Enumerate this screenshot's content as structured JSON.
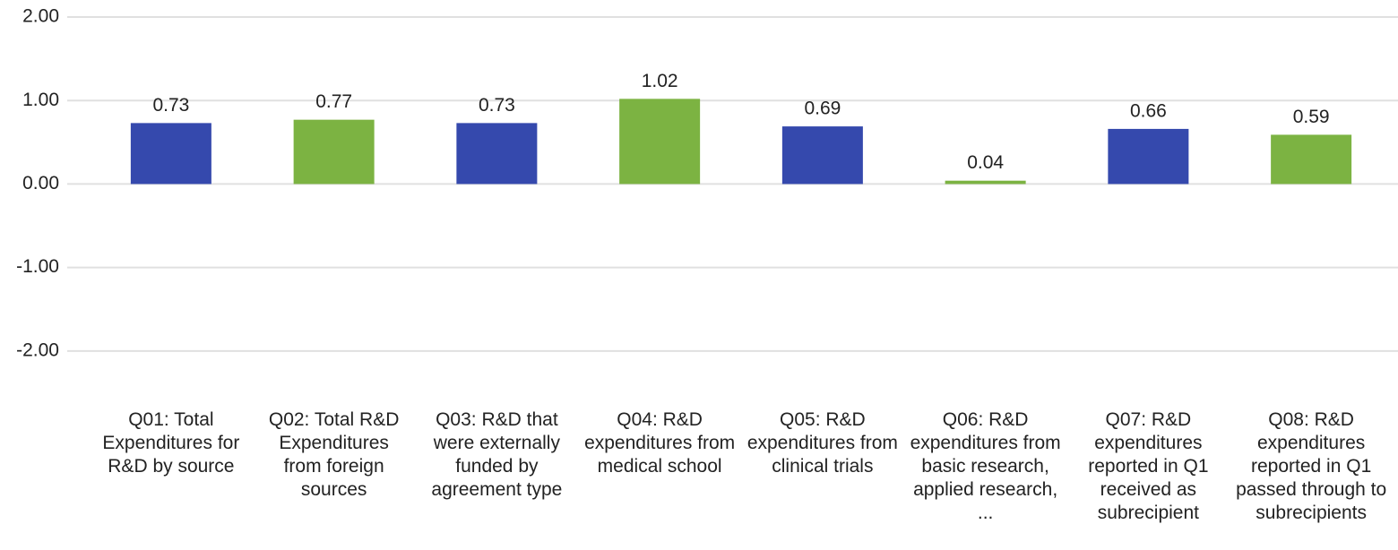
{
  "chart_data": {
    "type": "bar",
    "categories": [
      "Q01: Total Expenditures for R&D by source",
      "Q02: Total R&D Expenditures from foreign sources",
      "Q03: R&D that were externally funded by agreement type",
      "Q04: R&D expenditures from medical school",
      "Q05: R&D expenditures from clinical trials",
      "Q06: R&D expenditures from basic research, applied research, ...",
      "Q07: R&D expenditures reported in Q1 received as subrecipient",
      "Q08: R&D expenditures reported in Q1 passed through to subrecipients"
    ],
    "values": [
      0.73,
      0.77,
      0.73,
      1.02,
      0.69,
      0.04,
      0.66,
      0.59
    ],
    "colors": [
      "#3549ad",
      "#7cb342",
      "#3549ad",
      "#7cb342",
      "#3549ad",
      "#7cb342",
      "#3549ad",
      "#7cb342"
    ],
    "ylim": [
      -2.2,
      2.0
    ],
    "yticks": [
      {
        "value": -2,
        "label": "-2.00"
      },
      {
        "value": -1,
        "label": "-1.00"
      },
      {
        "value": 0,
        "label": "0.00"
      },
      {
        "value": 1,
        "label": "1.00"
      },
      {
        "value": 2,
        "label": "2.00"
      }
    ],
    "grid": true
  }
}
